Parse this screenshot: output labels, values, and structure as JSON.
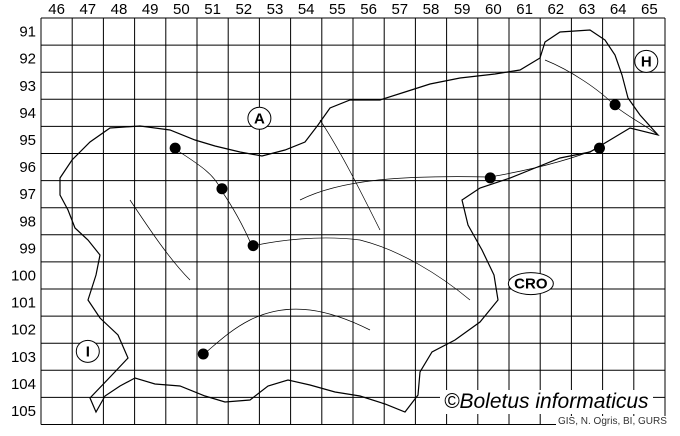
{
  "map": {
    "columns": [
      "46",
      "47",
      "48",
      "49",
      "50",
      "51",
      "52",
      "53",
      "54",
      "55",
      "56",
      "57",
      "58",
      "59",
      "60",
      "61",
      "62",
      "63",
      "64",
      "65"
    ],
    "rows": [
      "91",
      "92",
      "93",
      "94",
      "95",
      "96",
      "97",
      "98",
      "99",
      "100",
      "101",
      "102",
      "103",
      "104",
      "105"
    ],
    "country_labels": [
      {
        "text": "A",
        "col": 52.5,
        "row": 94.2
      },
      {
        "text": "H",
        "col": 64.9,
        "row": 92.1
      },
      {
        "text": "CRO",
        "col": 61.2,
        "row": 100.3
      },
      {
        "text": "I",
        "col": 47.0,
        "row": 102.8
      }
    ],
    "records": [
      {
        "col": 49.8,
        "row": 95.3
      },
      {
        "col": 51.3,
        "row": 96.8
      },
      {
        "col": 52.3,
        "row": 98.9
      },
      {
        "col": 50.7,
        "row": 102.9
      },
      {
        "col": 59.9,
        "row": 96.4
      },
      {
        "col": 63.4,
        "row": 95.3
      },
      {
        "col": 63.9,
        "row": 93.7
      }
    ],
    "copyright": "©Boletus informaticus",
    "credit": "GIS, N. Ogris, BI, GURS",
    "colors": {
      "grid": "#000000",
      "dot": "#000000",
      "border": "#000000"
    }
  }
}
